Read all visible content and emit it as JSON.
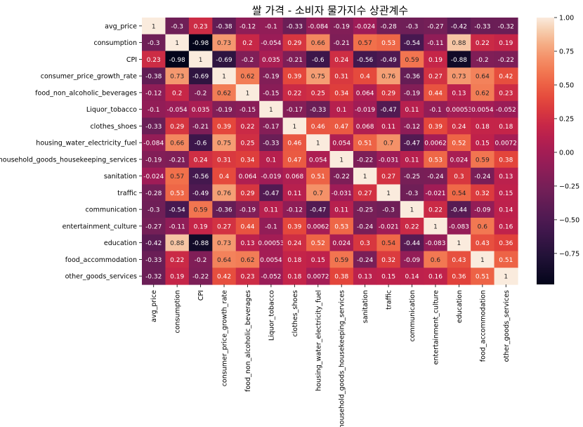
{
  "chart_data": {
    "type": "heatmap",
    "title": "쌀 가격 - 소비자 물가지수 상관계수",
    "row_labels": [
      "avg_price",
      "consumption",
      "CPI",
      "consumer_price_growth_rate",
      "food_non_alcoholic_beverages",
      "Liquor_tobacco",
      "clothes_shoes",
      "housing_water_electricity_fuel",
      "household_goods_housekeeping_services",
      "sanitation",
      "traffic",
      "communication",
      "entertainment_culture",
      "education",
      "food_accommodation",
      "other_goods_services"
    ],
    "col_labels": [
      "avg_price",
      "consumption",
      "CPI",
      "consumer_price_growth_rate",
      "food_non_alcoholic_beverages",
      "Liquor_tobacco",
      "clothes_shoes",
      "housing_water_electricity_fuel",
      "household_goods_housekeeping_services",
      "sanitation",
      "traffic",
      "communication",
      "entertainment_culture",
      "education",
      "food_accommodation",
      "other_goods_services"
    ],
    "values": [
      [
        1,
        -0.3,
        0.23,
        -0.38,
        -0.12,
        -0.1,
        -0.33,
        -0.084,
        -0.19,
        -0.024,
        -0.28,
        -0.3,
        -0.27,
        -0.42,
        -0.33,
        -0.32
      ],
      [
        -0.3,
        1,
        -0.98,
        0.73,
        0.2,
        -0.054,
        0.29,
        0.66,
        -0.21,
        0.57,
        0.53,
        -0.54,
        -0.11,
        0.88,
        0.22,
        0.19
      ],
      [
        0.23,
        -0.98,
        1,
        -0.69,
        -0.2,
        0.035,
        -0.21,
        -0.6,
        0.24,
        -0.56,
        -0.49,
        0.59,
        0.19,
        -0.88,
        -0.2,
        -0.22
      ],
      [
        -0.38,
        0.73,
        -0.69,
        1,
        0.62,
        -0.19,
        0.39,
        0.75,
        0.31,
        0.4,
        0.76,
        -0.36,
        0.27,
        0.73,
        0.64,
        0.42
      ],
      [
        -0.12,
        0.2,
        -0.2,
        0.62,
        1,
        -0.15,
        0.22,
        0.25,
        0.34,
        0.064,
        0.29,
        -0.19,
        0.44,
        0.13,
        0.62,
        0.23
      ],
      [
        -0.1,
        -0.054,
        0.035,
        -0.19,
        -0.15,
        1,
        -0.17,
        -0.33,
        0.1,
        -0.019,
        -0.47,
        0.11,
        -0.1,
        0.00053,
        0.0054,
        -0.052
      ],
      [
        -0.33,
        0.29,
        -0.21,
        0.39,
        0.22,
        -0.17,
        1,
        0.46,
        0.47,
        0.068,
        0.11,
        -0.12,
        0.39,
        0.24,
        0.18,
        0.18
      ],
      [
        -0.084,
        0.66,
        -0.6,
        0.75,
        0.25,
        -0.33,
        0.46,
        1,
        0.054,
        0.51,
        0.7,
        -0.47,
        0.0062,
        0.52,
        0.15,
        0.0072
      ],
      [
        -0.19,
        -0.21,
        0.24,
        0.31,
        0.34,
        0.1,
        0.47,
        0.054,
        1,
        -0.22,
        -0.031,
        0.11,
        0.53,
        0.024,
        0.59,
        0.38
      ],
      [
        -0.024,
        0.57,
        -0.56,
        0.4,
        0.064,
        -0.019,
        0.068,
        0.51,
        -0.22,
        1,
        0.27,
        -0.25,
        -0.24,
        0.3,
        -0.24,
        0.13
      ],
      [
        -0.28,
        0.53,
        -0.49,
        0.76,
        0.29,
        -0.47,
        0.11,
        0.7,
        -0.031,
        0.27,
        1,
        -0.3,
        -0.021,
        0.54,
        0.32,
        0.15
      ],
      [
        -0.3,
        -0.54,
        0.59,
        -0.36,
        -0.19,
        0.11,
        -0.12,
        -0.47,
        0.11,
        -0.25,
        -0.3,
        1,
        0.22,
        -0.44,
        -0.09,
        0.14
      ],
      [
        -0.27,
        -0.11,
        0.19,
        0.27,
        0.44,
        -0.1,
        0.39,
        0.0062,
        0.53,
        -0.24,
        -0.021,
        0.22,
        1,
        -0.083,
        0.6,
        0.16
      ],
      [
        -0.42,
        0.88,
        -0.88,
        0.73,
        0.13,
        0.00053,
        0.24,
        0.52,
        0.024,
        0.3,
        0.54,
        -0.44,
        -0.083,
        1,
        0.43,
        0.36
      ],
      [
        -0.33,
        0.22,
        -0.2,
        0.64,
        0.62,
        0.0054,
        0.18,
        0.15,
        0.59,
        -0.24,
        0.32,
        -0.09,
        0.6,
        0.43,
        1,
        0.51
      ],
      [
        -0.32,
        0.19,
        -0.22,
        0.42,
        0.23,
        -0.052,
        0.18,
        0.0072,
        0.38,
        0.13,
        0.15,
        0.14,
        0.16,
        0.36,
        0.51,
        1
      ]
    ],
    "colorbar": {
      "min": -0.98,
      "max": 1.0,
      "ticks": [
        1.0,
        0.75,
        0.5,
        0.25,
        0.0,
        -0.25,
        -0.5,
        -0.75
      ],
      "tick_labels": [
        "1.00",
        "0.75",
        "0.50",
        "0.25",
        "0.00",
        "−0.25",
        "−0.50",
        "−0.75"
      ]
    },
    "colormap": "rocket",
    "annotations": true
  }
}
